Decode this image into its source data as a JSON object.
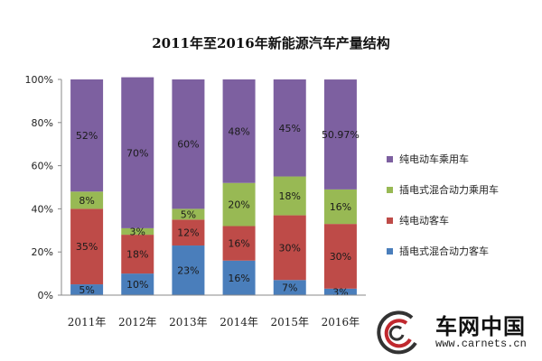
{
  "chart_data": {
    "type": "bar",
    "stacked": true,
    "title": "2011年至2016年新能源汽车产量结构",
    "xlabel": "",
    "ylabel": "",
    "categories": [
      "2011年",
      "2012年",
      "2013年",
      "2014年",
      "2015年",
      "2016年"
    ],
    "ylim": [
      0,
      100
    ],
    "yticks": [
      "0%",
      "20%",
      "40%",
      "60%",
      "80%",
      "100%"
    ],
    "series": [
      {
        "name": "插电式混合动力客车",
        "color": "#4a7ebb",
        "values": [
          5,
          10,
          23,
          16,
          7,
          3
        ],
        "labels": [
          "5%",
          "10%",
          "23%",
          "16%",
          "7%",
          "3%"
        ]
      },
      {
        "name": "纯电动客车",
        "color": "#be4b48",
        "values": [
          35,
          18,
          12,
          16,
          30,
          30
        ],
        "labels": [
          "35%",
          "18%",
          "12%",
          "16%",
          "30%",
          "30%"
        ]
      },
      {
        "name": "插电式混合动力乘用车",
        "color": "#98b954",
        "values": [
          8,
          3,
          5,
          20,
          18,
          16
        ],
        "labels": [
          "8%",
          "3%",
          "5%",
          "20%",
          "18%",
          "16%"
        ]
      },
      {
        "name": "纯电动车乘用车",
        "color": "#7d60a0",
        "values": [
          52,
          70,
          60,
          48,
          45,
          50.97
        ],
        "labels": [
          "52%",
          "70%",
          "60%",
          "48%",
          "45%",
          "50.97%"
        ]
      }
    ],
    "legend_order": [
      3,
      2,
      1,
      0
    ],
    "legend_position": "right",
    "grid": false
  },
  "watermark": {
    "text": "车网中国",
    "url": "www.carnets.cn"
  }
}
